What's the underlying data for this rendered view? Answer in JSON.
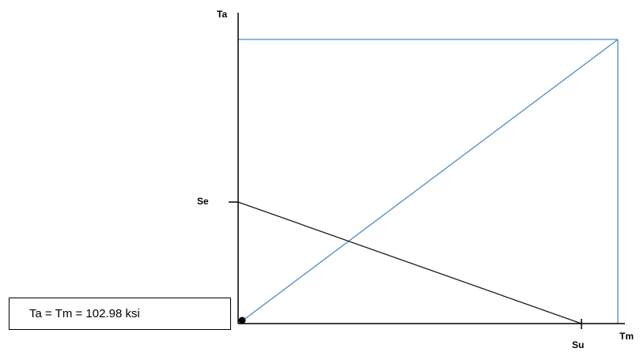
{
  "labels": {
    "y_axis": "Ta",
    "x_axis": "Tm",
    "endurance": "Se",
    "ultimate": "Su"
  },
  "result": "Ta = Tm = 102.98 ksi",
  "colors": {
    "axes": "#000000",
    "load_line": "#4a8cc8",
    "failure_line": "#000000"
  }
}
